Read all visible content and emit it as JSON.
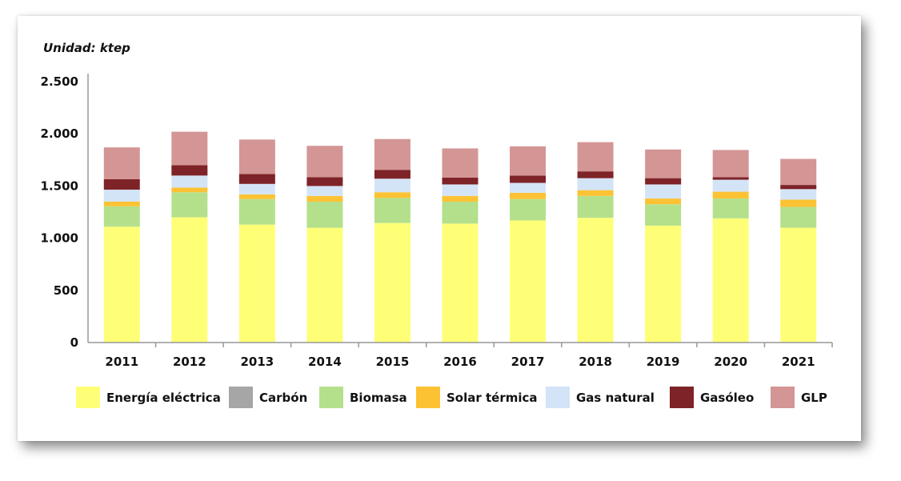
{
  "chart_data": {
    "type": "bar",
    "stacked": true,
    "unit_label": "Unidad: ktep",
    "categories": [
      "2011",
      "2012",
      "2013",
      "2014",
      "2015",
      "2016",
      "2017",
      "2018",
      "2019",
      "2020",
      "2021"
    ],
    "ylim": [
      0,
      2500
    ],
    "yticks": [
      0,
      500,
      1000,
      1500,
      2000,
      2500
    ],
    "ytick_labels": [
      "0",
      "500",
      "1.000",
      "1.500",
      "2.000",
      "2.500"
    ],
    "series": [
      {
        "name": "Energía eléctrica",
        "color": "#ffff77",
        "values": [
          1110,
          1200,
          1130,
          1100,
          1145,
          1140,
          1170,
          1195,
          1120,
          1190,
          1100
        ]
      },
      {
        "name": "Carbón",
        "color": "#a6a6a6",
        "values": [
          0,
          0,
          0,
          0,
          0,
          0,
          0,
          0,
          0,
          0,
          0
        ]
      },
      {
        "name": "Biomasa",
        "color": "#b4e08c",
        "values": [
          195,
          240,
          245,
          250,
          240,
          210,
          205,
          210,
          205,
          190,
          200
        ]
      },
      {
        "name": "Solar térmica",
        "color": "#fcc234",
        "values": [
          45,
          45,
          45,
          55,
          55,
          55,
          60,
          55,
          55,
          65,
          70
        ]
      },
      {
        "name": "Gas natural",
        "color": "#d4e4f7",
        "values": [
          115,
          115,
          100,
          95,
          130,
          110,
          95,
          115,
          135,
          115,
          100
        ]
      },
      {
        "name": "Gasóleo",
        "color": "#7e2327",
        "values": [
          100,
          100,
          95,
          85,
          85,
          65,
          70,
          65,
          60,
          25,
          40
        ]
      },
      {
        "name": "GLP",
        "color": "#d49595",
        "values": [
          305,
          320,
          330,
          300,
          295,
          280,
          280,
          280,
          275,
          260,
          250
        ]
      }
    ]
  }
}
